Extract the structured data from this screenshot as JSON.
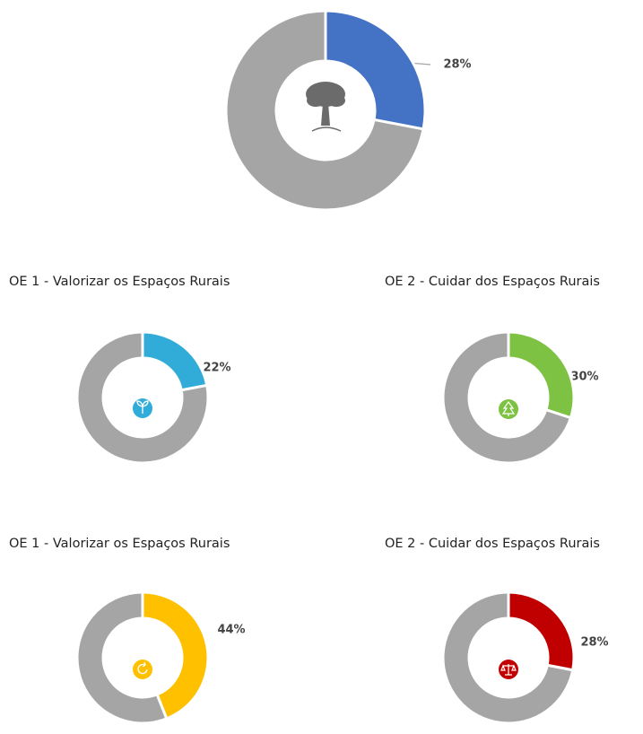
{
  "chart_data": [
    {
      "type": "pie",
      "values": [
        28,
        72
      ],
      "value_labels": [
        "28%",
        null
      ],
      "colors": [
        "#4472c4",
        "#a5a5a5"
      ]
    },
    {
      "type": "pie",
      "title": "OE 1 - Valorizar os Espaços Rurais",
      "values": [
        22,
        78
      ],
      "value_labels": [
        "22%",
        null
      ],
      "colors": [
        "#31acd9",
        "#a5a5a5"
      ]
    },
    {
      "type": "pie",
      "title": "OE 2 - Cuidar dos Espaços Rurais",
      "values": [
        30,
        70
      ],
      "value_labels": [
        "30%",
        null
      ],
      "colors": [
        "#7dc242",
        "#a5a5a5"
      ]
    },
    {
      "type": "pie",
      "title": "OE 1 - Valorizar os Espaços Rurais",
      "values": [
        44,
        56
      ],
      "value_labels": [
        "44%",
        null
      ],
      "colors": [
        "#ffc000",
        "#a5a5a5"
      ]
    },
    {
      "type": "pie",
      "title": "OE 2 - Cuidar dos Espaços Rurais",
      "values": [
        28,
        72
      ],
      "value_labels": [
        "28%",
        null
      ],
      "colors": [
        "#c00000",
        "#a5a5a5"
      ]
    }
  ]
}
